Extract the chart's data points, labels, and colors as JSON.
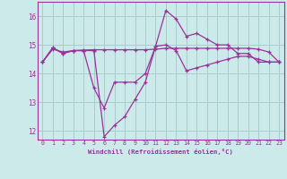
{
  "xlabel": "Windchill (Refroidissement éolien,°C)",
  "background_color": "#cceaea",
  "grid_color": "#aacccc",
  "line_color": "#993399",
  "xlim": [
    -0.5,
    23.5
  ],
  "ylim": [
    11.7,
    16.5
  ],
  "yticks": [
    12,
    13,
    14,
    15,
    16
  ],
  "xticks": [
    0,
    1,
    2,
    3,
    4,
    5,
    6,
    7,
    8,
    9,
    10,
    11,
    12,
    13,
    14,
    15,
    16,
    17,
    18,
    19,
    20,
    21,
    22,
    23
  ],
  "series1_x": [
    0,
    1,
    2,
    3,
    4,
    5,
    6,
    7,
    8,
    9,
    10,
    11,
    12,
    13,
    14,
    15,
    16,
    17,
    18,
    19,
    20,
    21,
    22,
    23
  ],
  "series1_y": [
    14.4,
    14.9,
    14.7,
    14.8,
    14.8,
    14.8,
    11.8,
    12.2,
    12.5,
    13.1,
    13.7,
    14.95,
    16.2,
    15.9,
    15.3,
    15.4,
    15.2,
    15.0,
    15.0,
    14.7,
    14.7,
    14.4,
    14.4,
    14.4
  ],
  "series2_x": [
    0,
    1,
    2,
    3,
    4,
    5,
    6,
    7,
    8,
    9,
    10,
    11,
    12,
    13,
    14,
    15,
    16,
    17,
    18,
    19,
    20,
    21,
    22,
    23
  ],
  "series2_y": [
    14.4,
    14.9,
    14.7,
    14.8,
    14.8,
    13.5,
    12.8,
    13.7,
    13.7,
    13.7,
    14.0,
    14.95,
    15.0,
    14.8,
    14.1,
    14.2,
    14.3,
    14.4,
    14.5,
    14.6,
    14.6,
    14.5,
    14.4,
    14.4
  ],
  "series3_x": [
    0,
    1,
    2,
    3,
    4,
    5,
    6,
    7,
    8,
    9,
    10,
    11,
    12,
    13,
    14,
    15,
    16,
    17,
    18,
    19,
    20,
    21,
    22,
    23
  ],
  "series3_y": [
    14.4,
    14.85,
    14.75,
    14.8,
    14.82,
    14.83,
    14.83,
    14.83,
    14.83,
    14.83,
    14.83,
    14.85,
    14.88,
    14.88,
    14.88,
    14.88,
    14.88,
    14.88,
    14.88,
    14.88,
    14.88,
    14.85,
    14.75,
    14.4
  ]
}
